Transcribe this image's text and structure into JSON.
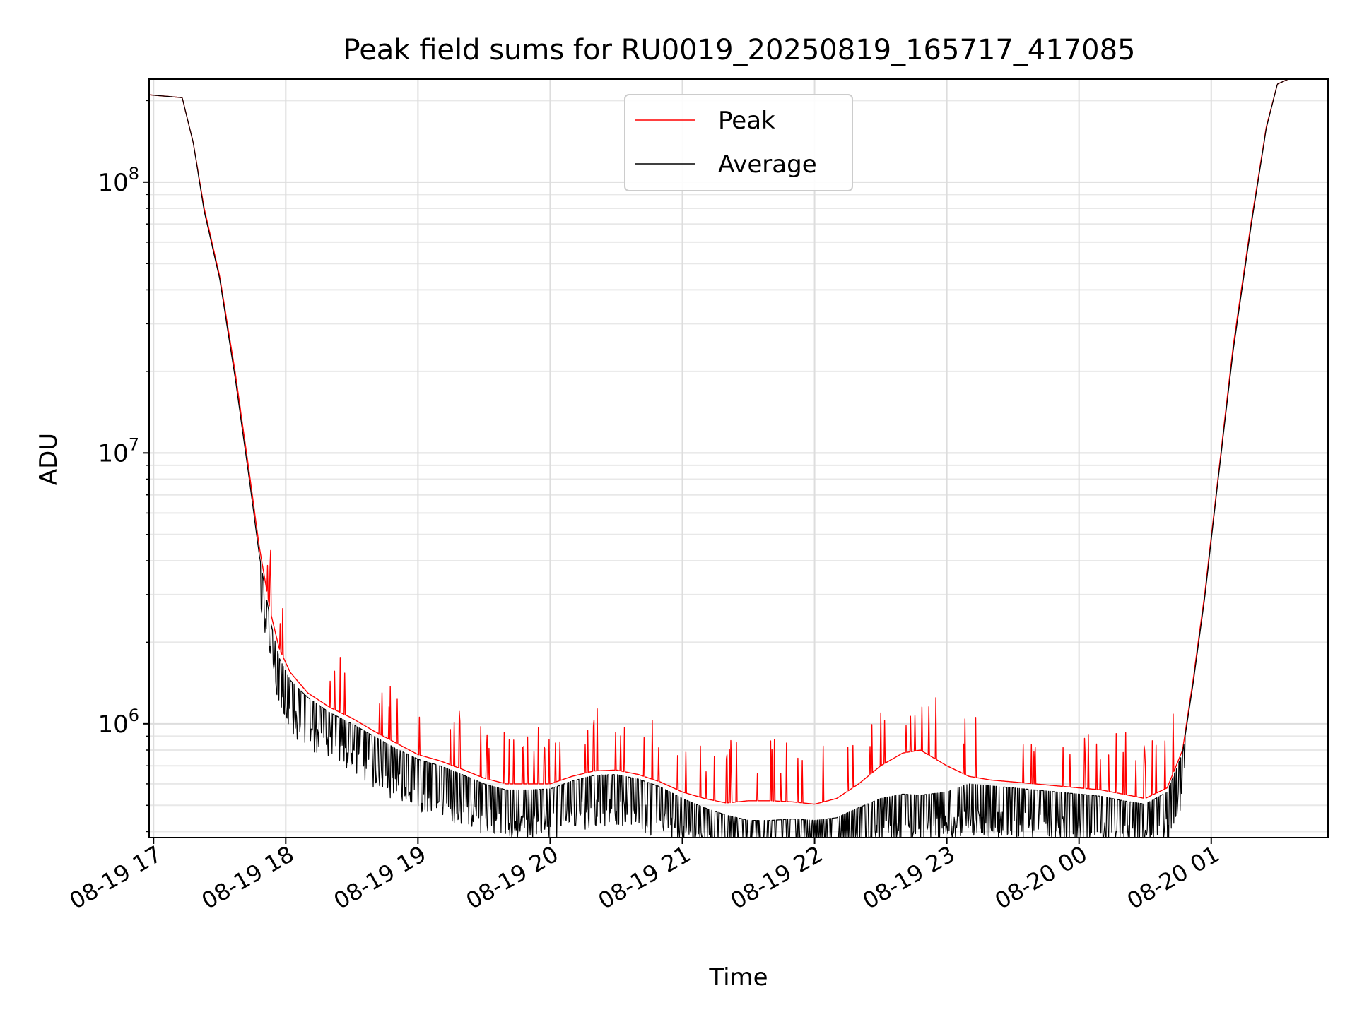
{
  "chart_data": {
    "type": "line",
    "title": "Peak field sums for RU0019_20250819_165717_417085",
    "xlabel": "Time",
    "ylabel": "ADU",
    "x_scale": "time",
    "y_scale": "log",
    "xlim": [
      "2025-08-19 16:58",
      "2025-08-20 01:53"
    ],
    "ylim": [
      380000,
      240000000
    ],
    "grid": true,
    "legend_position": "upper center",
    "x_ticks": [
      {
        "t": "2025-08-19 17:00",
        "label": "08-19 17"
      },
      {
        "t": "2025-08-19 18:00",
        "label": "08-19 18"
      },
      {
        "t": "2025-08-19 19:00",
        "label": "08-19 19"
      },
      {
        "t": "2025-08-19 20:00",
        "label": "08-19 20"
      },
      {
        "t": "2025-08-19 21:00",
        "label": "08-19 21"
      },
      {
        "t": "2025-08-19 22:00",
        "label": "08-19 22"
      },
      {
        "t": "2025-08-19 23:00",
        "label": "08-19 23"
      },
      {
        "t": "2025-08-20 00:00",
        "label": "08-20 00"
      },
      {
        "t": "2025-08-20 01:00",
        "label": "08-20 01"
      }
    ],
    "y_ticks": [
      {
        "value": 1000000,
        "base": "10",
        "exp": "6"
      },
      {
        "value": 10000000,
        "base": "10",
        "exp": "7"
      },
      {
        "value": 100000000,
        "base": "10",
        "exp": "8"
      }
    ],
    "series": [
      {
        "name": "Peak",
        "color": "#ff0000",
        "points": [
          [
            "2025-08-19 16:58",
            210000000
          ],
          [
            "2025-08-19 17:13",
            205000000
          ],
          [
            "2025-08-19 17:18",
            140000000
          ],
          [
            "2025-08-19 17:23",
            80000000
          ],
          [
            "2025-08-19 17:30",
            45000000
          ],
          [
            "2025-08-19 17:37",
            20000000
          ],
          [
            "2025-08-19 17:43",
            9000000
          ],
          [
            "2025-08-19 17:48",
            4500000
          ],
          [
            "2025-08-19 17:53",
            2600000
          ],
          [
            "2025-08-19 17:57",
            1900000
          ],
          [
            "2025-08-19 18:02",
            1550000
          ],
          [
            "2025-08-19 18:10",
            1300000
          ],
          [
            "2025-08-19 18:20",
            1150000
          ],
          [
            "2025-08-19 18:30",
            1050000
          ],
          [
            "2025-08-19 18:40",
            940000
          ],
          [
            "2025-08-19 18:50",
            850000
          ],
          [
            "2025-08-19 19:00",
            770000
          ],
          [
            "2025-08-19 19:10",
            730000
          ],
          [
            "2025-08-19 19:20",
            680000
          ],
          [
            "2025-08-19 19:30",
            630000
          ],
          [
            "2025-08-19 19:40",
            600000
          ],
          [
            "2025-08-19 19:50",
            600000
          ],
          [
            "2025-08-19 20:00",
            600000
          ],
          [
            "2025-08-19 20:10",
            640000
          ],
          [
            "2025-08-19 20:20",
            670000
          ],
          [
            "2025-08-19 20:30",
            675000
          ],
          [
            "2025-08-19 20:40",
            650000
          ],
          [
            "2025-08-19 20:50",
            610000
          ],
          [
            "2025-08-19 21:00",
            560000
          ],
          [
            "2025-08-19 21:10",
            530000
          ],
          [
            "2025-08-19 21:20",
            510000
          ],
          [
            "2025-08-19 21:30",
            520000
          ],
          [
            "2025-08-19 21:40",
            520000
          ],
          [
            "2025-08-19 21:50",
            515000
          ],
          [
            "2025-08-19 22:00",
            505000
          ],
          [
            "2025-08-19 22:10",
            530000
          ],
          [
            "2025-08-19 22:20",
            600000
          ],
          [
            "2025-08-19 22:30",
            700000
          ],
          [
            "2025-08-19 22:40",
            780000
          ],
          [
            "2025-08-19 22:48",
            800000
          ],
          [
            "2025-08-19 23:00",
            700000
          ],
          [
            "2025-08-19 23:10",
            640000
          ],
          [
            "2025-08-19 23:20",
            620000
          ],
          [
            "2025-08-19 23:30",
            610000
          ],
          [
            "2025-08-19 23:40",
            600000
          ],
          [
            "2025-08-19 23:50",
            590000
          ],
          [
            "2025-08-20 00:00",
            580000
          ],
          [
            "2025-08-20 00:10",
            570000
          ],
          [
            "2025-08-20 00:20",
            550000
          ],
          [
            "2025-08-20 00:30",
            530000
          ],
          [
            "2025-08-20 00:40",
            580000
          ],
          [
            "2025-08-20 00:47",
            800000
          ],
          [
            "2025-08-20 00:52",
            1500000
          ],
          [
            "2025-08-20 00:57",
            3000000
          ],
          [
            "2025-08-20 01:03",
            8000000
          ],
          [
            "2025-08-20 01:10",
            25000000
          ],
          [
            "2025-08-20 01:18",
            70000000
          ],
          [
            "2025-08-20 01:25",
            160000000
          ],
          [
            "2025-08-20 01:30",
            230000000
          ],
          [
            "2025-08-20 01:35",
            240000000
          ]
        ]
      },
      {
        "name": "Average",
        "color": "#000000",
        "points": [
          [
            "2025-08-19 16:58",
            210000000
          ],
          [
            "2025-08-19 17:13",
            205000000
          ],
          [
            "2025-08-19 17:18",
            140000000
          ],
          [
            "2025-08-19 17:23",
            78000000
          ],
          [
            "2025-08-19 17:30",
            44000000
          ],
          [
            "2025-08-19 17:37",
            19000000
          ],
          [
            "2025-08-19 17:43",
            8500000
          ],
          [
            "2025-08-19 17:48",
            4200000
          ],
          [
            "2025-08-19 17:53",
            2400000
          ],
          [
            "2025-08-19 17:57",
            1750000
          ],
          [
            "2025-08-19 18:02",
            1450000
          ],
          [
            "2025-08-19 18:10",
            1250000
          ],
          [
            "2025-08-19 18:20",
            1100000
          ],
          [
            "2025-08-19 18:30",
            1000000
          ],
          [
            "2025-08-19 18:40",
            900000
          ],
          [
            "2025-08-19 18:50",
            810000
          ],
          [
            "2025-08-19 19:00",
            740000
          ],
          [
            "2025-08-19 19:10",
            700000
          ],
          [
            "2025-08-19 19:20",
            650000
          ],
          [
            "2025-08-19 19:30",
            600000
          ],
          [
            "2025-08-19 19:40",
            570000
          ],
          [
            "2025-08-19 19:50",
            570000
          ],
          [
            "2025-08-19 20:00",
            575000
          ],
          [
            "2025-08-19 20:10",
            615000
          ],
          [
            "2025-08-19 20:20",
            645000
          ],
          [
            "2025-08-19 20:30",
            650000
          ],
          [
            "2025-08-19 20:40",
            625000
          ],
          [
            "2025-08-19 20:50",
            585000
          ],
          [
            "2025-08-19 21:00",
            530000
          ],
          [
            "2025-08-19 21:10",
            490000
          ],
          [
            "2025-08-19 21:20",
            460000
          ],
          [
            "2025-08-19 21:30",
            440000
          ],
          [
            "2025-08-19 21:40",
            440000
          ],
          [
            "2025-08-19 21:50",
            445000
          ],
          [
            "2025-08-19 22:00",
            440000
          ],
          [
            "2025-08-19 22:10",
            450000
          ],
          [
            "2025-08-19 22:20",
            490000
          ],
          [
            "2025-08-19 22:30",
            530000
          ],
          [
            "2025-08-19 22:40",
            550000
          ],
          [
            "2025-08-19 22:48",
            545000
          ],
          [
            "2025-08-19 23:00",
            560000
          ],
          [
            "2025-08-19 23:10",
            600000
          ],
          [
            "2025-08-19 23:20",
            590000
          ],
          [
            "2025-08-19 23:30",
            580000
          ],
          [
            "2025-08-19 23:40",
            570000
          ],
          [
            "2025-08-19 23:50",
            560000
          ],
          [
            "2025-08-20 00:00",
            550000
          ],
          [
            "2025-08-20 00:10",
            540000
          ],
          [
            "2025-08-20 00:20",
            520000
          ],
          [
            "2025-08-20 00:30",
            505000
          ],
          [
            "2025-08-20 00:40",
            560000
          ],
          [
            "2025-08-20 00:47",
            780000
          ],
          [
            "2025-08-20 00:52",
            1450000
          ],
          [
            "2025-08-20 00:57",
            2900000
          ],
          [
            "2025-08-20 01:03",
            7800000
          ],
          [
            "2025-08-20 01:10",
            24000000
          ],
          [
            "2025-08-20 01:18",
            68000000
          ],
          [
            "2025-08-20 01:25",
            158000000
          ],
          [
            "2025-08-20 01:30",
            230000000
          ],
          [
            "2025-08-20 01:35",
            240000000
          ]
        ]
      }
    ]
  }
}
